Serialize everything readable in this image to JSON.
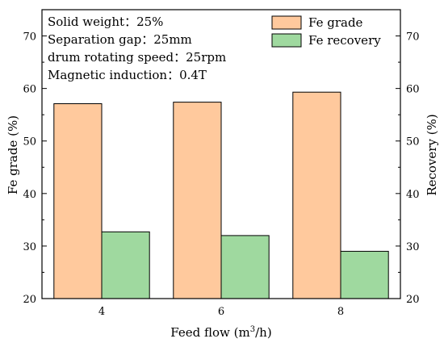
{
  "chart_data": {
    "type": "bar",
    "categories": [
      "4",
      "6",
      "8"
    ],
    "series": [
      {
        "name": "Fe grade",
        "values": [
          57.1,
          57.4,
          59.3
        ],
        "axis": "left",
        "color": "#FFC99D"
      },
      {
        "name": "Fe recovery",
        "values": [
          32.7,
          32.0,
          29.0
        ],
        "axis": "right",
        "color": "#9FD99F"
      }
    ],
    "xlabel_main": "Feed flow (m",
    "xlabel_sup": "3",
    "xlabel_end": "/h)",
    "ylabel": "Fe grade (%)",
    "ylabel_right": "Recovery (%)",
    "ylim": [
      20,
      75
    ],
    "ylim_right": [
      20,
      75
    ],
    "yticks": [
      "20",
      "30",
      "40",
      "50",
      "60",
      "70"
    ],
    "yticks_right": [
      "20",
      "30",
      "40",
      "50",
      "60",
      "70"
    ],
    "annotations": [
      "Solid weight：25%",
      "Separation gap：25mm",
      "drum rotating speed：25rpm",
      "Magnetic induction：0.4T"
    ],
    "legend_position": "top-right",
    "grid": false
  }
}
